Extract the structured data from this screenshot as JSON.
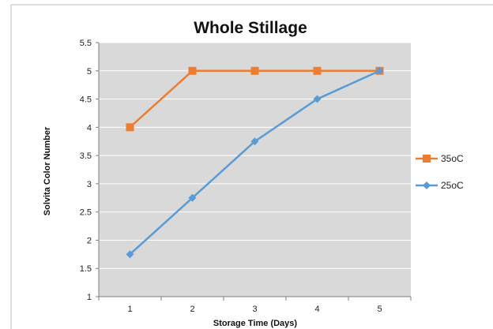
{
  "chart_data": {
    "type": "line",
    "title": "Whole Stillage",
    "xlabel": "Storage Time (Days)",
    "ylabel": "Solvita Color Number",
    "categories": [
      "1",
      "2",
      "3",
      "4",
      "5"
    ],
    "x": [
      1,
      2,
      3,
      4,
      5
    ],
    "ylim": [
      1,
      5.5
    ],
    "yticks": [
      "1",
      "1.5",
      "2",
      "2.5",
      "3",
      "3.5",
      "4",
      "4.5",
      "5",
      "5.5"
    ],
    "grid": true,
    "legend_position": "right",
    "series": [
      {
        "name": "35oC",
        "values": [
          4,
          5,
          5,
          5,
          5
        ],
        "color": "#ED7D31",
        "marker": "square"
      },
      {
        "name": "25oC",
        "values": [
          1.75,
          2.75,
          3.75,
          4.5,
          5
        ],
        "color": "#5B9BD5",
        "marker": "diamond"
      }
    ]
  },
  "colors": {
    "plot_background": "#D9D9D9",
    "gridline": "#FFFFFF"
  }
}
